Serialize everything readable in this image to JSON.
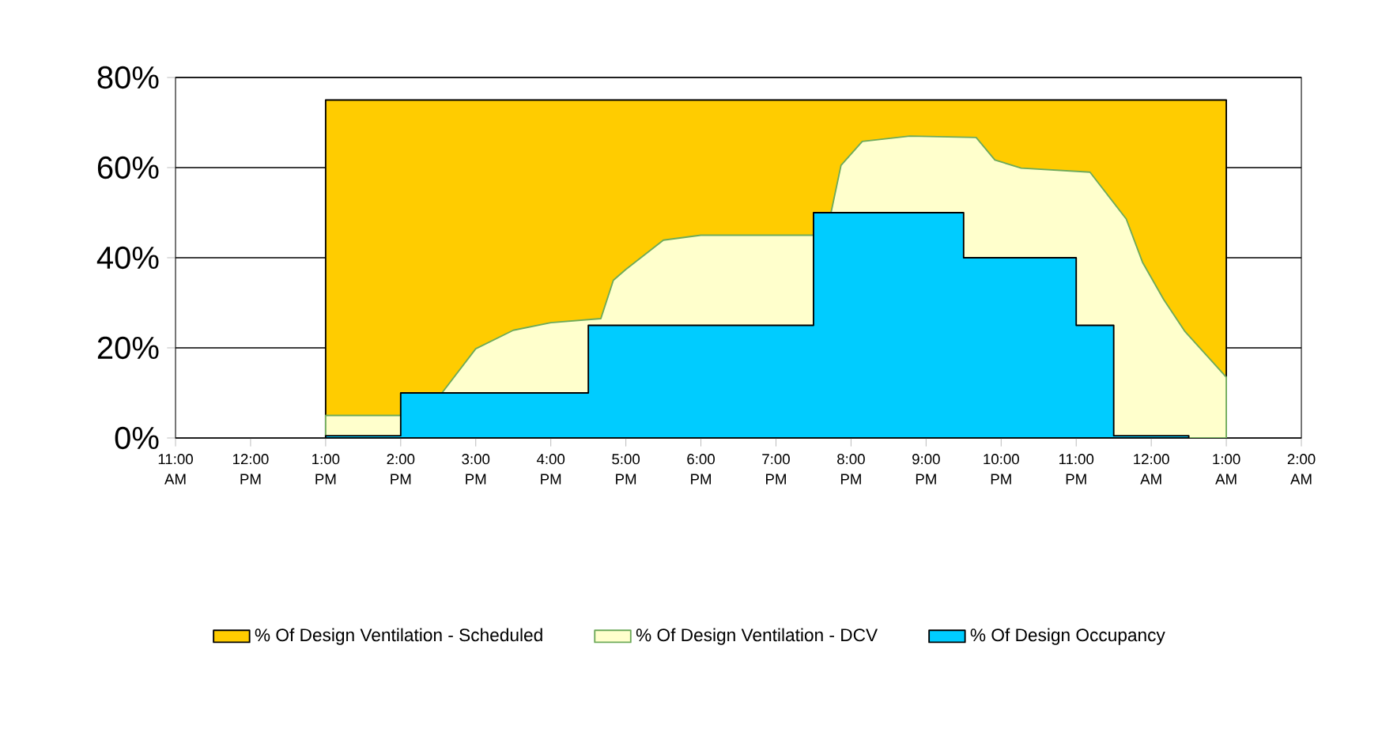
{
  "chart_data": {
    "type": "area",
    "xlim": [
      "2000-01-01T11:00",
      "2000-01-02T02:00"
    ],
    "ylim": [
      0,
      80
    ],
    "xticks": [
      {
        "value": "2000-01-01T11:00",
        "label": "11:00 AM"
      },
      {
        "value": "2000-01-01T12:00",
        "label": "12:00 PM"
      },
      {
        "value": "2000-01-01T13:00",
        "label": "1:00 PM"
      },
      {
        "value": "2000-01-01T14:00",
        "label": "2:00 PM"
      },
      {
        "value": "2000-01-01T15:00",
        "label": "3:00 PM"
      },
      {
        "value": "2000-01-01T16:00",
        "label": "4:00 PM"
      },
      {
        "value": "2000-01-01T17:00",
        "label": "5:00 PM"
      },
      {
        "value": "2000-01-01T18:00",
        "label": "6:00 PM"
      },
      {
        "value": "2000-01-01T19:00",
        "label": "7:00 PM"
      },
      {
        "value": "2000-01-01T20:00",
        "label": "8:00 PM"
      },
      {
        "value": "2000-01-01T21:00",
        "label": "9:00 PM"
      },
      {
        "value": "2000-01-01T22:00",
        "label": "10:00 PM"
      },
      {
        "value": "2000-01-01T23:00",
        "label": "11:00 PM"
      },
      {
        "value": "2000-01-02T00:00",
        "label": "12:00 AM"
      },
      {
        "value": "2000-01-02T01:00",
        "label": "1:00 AM"
      },
      {
        "value": "2000-01-02T02:00",
        "label": "2:00 AM"
      }
    ],
    "yticks": [
      {
        "value": 0,
        "label": "0%"
      },
      {
        "value": 20,
        "label": "20%"
      },
      {
        "value": 40,
        "label": "40%"
      },
      {
        "value": 60,
        "label": "60%"
      },
      {
        "value": 80,
        "label": "80%"
      }
    ],
    "grid": "y",
    "legend": "bottom",
    "series": [
      {
        "name": "% Of Design Ventilation - Scheduled",
        "color": "#ffcc00",
        "x": [
          "2000-01-01T13:00",
          "2000-01-01T13:00",
          "2000-01-02T01:00",
          "2000-01-02T01:00"
        ],
        "values": [
          0,
          75,
          75,
          0
        ]
      },
      {
        "name": "% Of Design Ventilation - DCV",
        "color": "#ffffcc",
        "x": [
          "2000-01-01T13:00",
          "2000-01-01T13:00",
          "2000-01-01T14:00",
          "2000-01-01T14:00",
          "2000-01-01T14:33",
          "2000-01-01T15:00",
          "2000-01-01T15:30",
          "2000-01-01T16:00",
          "2000-01-01T16:40",
          "2000-01-01T16:50",
          "2000-01-01T17:00",
          "2000-01-01T17:30",
          "2000-01-01T18:00",
          "2000-01-01T19:30",
          "2000-01-01T19:44",
          "2000-01-01T19:52",
          "2000-01-01T20:09",
          "2000-01-01T20:47",
          "2000-01-01T21:40",
          "2000-01-01T21:55",
          "2000-01-01T22:16",
          "2000-01-01T23:11",
          "2000-01-01T23:40",
          "2000-01-01T23:53",
          "2000-01-02T00:10",
          "2000-01-02T00:27",
          "2000-01-02T01:00",
          "2000-01-02T01:00"
        ],
        "values": [
          0,
          5,
          5,
          10,
          10,
          19.8,
          23.9,
          25.6,
          26.5,
          35,
          37.4,
          43.9,
          45,
          45,
          50,
          60.5,
          65.8,
          67,
          66.7,
          61.7,
          59.9,
          59,
          48.6,
          39,
          30.7,
          23.6,
          13.5,
          0
        ]
      },
      {
        "name": "% Of Design Occupancy",
        "color": "#00ccff",
        "x": [
          "2000-01-01T13:00",
          "2000-01-01T13:00",
          "2000-01-01T14:00",
          "2000-01-01T14:00",
          "2000-01-01T16:30",
          "2000-01-01T16:30",
          "2000-01-01T19:30",
          "2000-01-01T19:30",
          "2000-01-01T21:30",
          "2000-01-01T21:30",
          "2000-01-01T23:00",
          "2000-01-01T23:00",
          "2000-01-01T23:30",
          "2000-01-01T23:30",
          "2000-01-02T00:30",
          "2000-01-02T00:30"
        ],
        "values": [
          0,
          0.5,
          0.5,
          10,
          10,
          25,
          25,
          50,
          50,
          40,
          40,
          25,
          25,
          0.5,
          0.5,
          0
        ]
      }
    ]
  }
}
